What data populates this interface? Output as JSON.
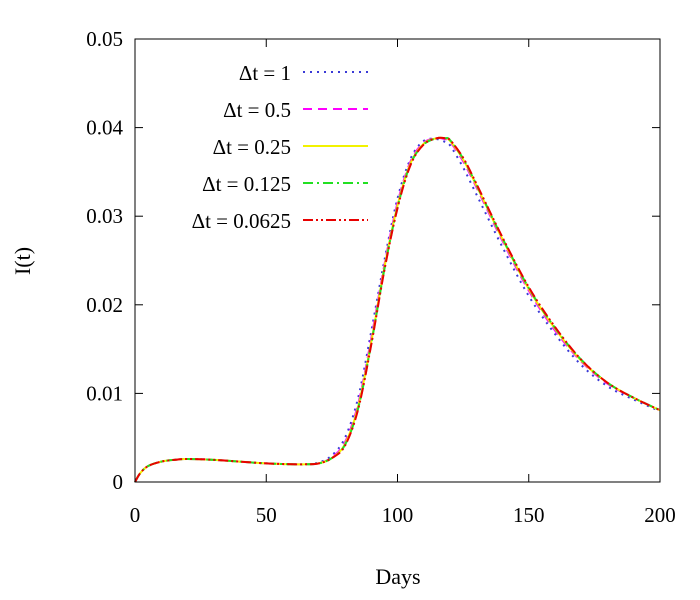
{
  "chart_data": {
    "type": "line",
    "xlabel": "Days",
    "ylabel": "I(t)",
    "xlim": [
      0,
      200
    ],
    "ylim": [
      0,
      0.05
    ],
    "x_ticks": [
      0,
      50,
      100,
      150,
      200
    ],
    "x_tick_labels": [
      "0",
      "50",
      "100",
      "150",
      "200"
    ],
    "y_ticks": [
      0,
      0.01,
      0.02,
      0.03,
      0.04,
      0.05
    ],
    "y_tick_labels": [
      "0",
      "0.01",
      "0.02",
      "0.03",
      "0.04",
      "0.05"
    ],
    "grid": false,
    "legend_position": "top-left",
    "x": [
      0,
      2,
      5,
      10,
      15,
      20,
      30,
      40,
      50,
      60,
      65,
      70,
      75,
      80,
      85,
      90,
      95,
      100,
      105,
      110,
      115,
      118,
      120,
      125,
      130,
      140,
      150,
      160,
      170,
      180,
      190,
      200
    ],
    "series": [
      {
        "name": "Δt = 1",
        "color": "#3a3ad6",
        "dash": "dotted",
        "values": [
          0,
          0.001,
          0.0018,
          0.0023,
          0.0025,
          0.0026,
          0.0025,
          0.0023,
          0.0021,
          0.002,
          0.002,
          0.0022,
          0.003,
          0.005,
          0.0095,
          0.017,
          0.025,
          0.032,
          0.0365,
          0.0385,
          0.0387,
          0.0384,
          0.038,
          0.0355,
          0.0325,
          0.0265,
          0.021,
          0.0167,
          0.0132,
          0.0108,
          0.0093,
          0.008
        ]
      },
      {
        "name": "Δt = 0.5",
        "color": "#ff00ff",
        "dash": "dashed",
        "values": [
          0,
          0.001,
          0.0018,
          0.0023,
          0.0025,
          0.0026,
          0.0025,
          0.0023,
          0.0021,
          0.002,
          0.002,
          0.0021,
          0.0028,
          0.0045,
          0.0088,
          0.0162,
          0.0245,
          0.0315,
          0.0362,
          0.0383,
          0.0388,
          0.0387,
          0.0384,
          0.0362,
          0.0333,
          0.0272,
          0.0216,
          0.0171,
          0.0136,
          0.0111,
          0.0095,
          0.0081
        ]
      },
      {
        "name": "Δt = 0.25",
        "color": "#f2f200",
        "dash": "solid",
        "values": [
          0,
          0.001,
          0.0018,
          0.0023,
          0.0025,
          0.0026,
          0.0025,
          0.0023,
          0.0021,
          0.002,
          0.002,
          0.0021,
          0.0027,
          0.0043,
          0.0085,
          0.0158,
          0.0242,
          0.0312,
          0.036,
          0.0382,
          0.0388,
          0.0388,
          0.0385,
          0.0364,
          0.0335,
          0.0274,
          0.0218,
          0.0173,
          0.0137,
          0.0112,
          0.0095,
          0.0081
        ]
      },
      {
        "name": "Δt = 0.125",
        "color": "#22e022",
        "dash": "dashdot",
        "values": [
          0,
          0.001,
          0.0018,
          0.0023,
          0.0025,
          0.0026,
          0.0025,
          0.0023,
          0.0021,
          0.002,
          0.002,
          0.0021,
          0.0027,
          0.0042,
          0.0083,
          0.0156,
          0.024,
          0.031,
          0.0359,
          0.0381,
          0.0388,
          0.0388,
          0.0386,
          0.0365,
          0.0336,
          0.0275,
          0.0219,
          0.0174,
          0.0138,
          0.0112,
          0.0095,
          0.0081
        ]
      },
      {
        "name": "Δt = 0.0625",
        "color": "#e80000",
        "dash": "dashdotdot",
        "values": [
          0,
          0.001,
          0.0018,
          0.0023,
          0.0025,
          0.0026,
          0.0025,
          0.0023,
          0.0021,
          0.002,
          0.002,
          0.0021,
          0.0027,
          0.0041,
          0.0082,
          0.0155,
          0.0239,
          0.0309,
          0.0358,
          0.0381,
          0.0388,
          0.0388,
          0.0386,
          0.0366,
          0.0337,
          0.0276,
          0.022,
          0.0175,
          0.0138,
          0.0112,
          0.0095,
          0.0081
        ]
      }
    ]
  }
}
